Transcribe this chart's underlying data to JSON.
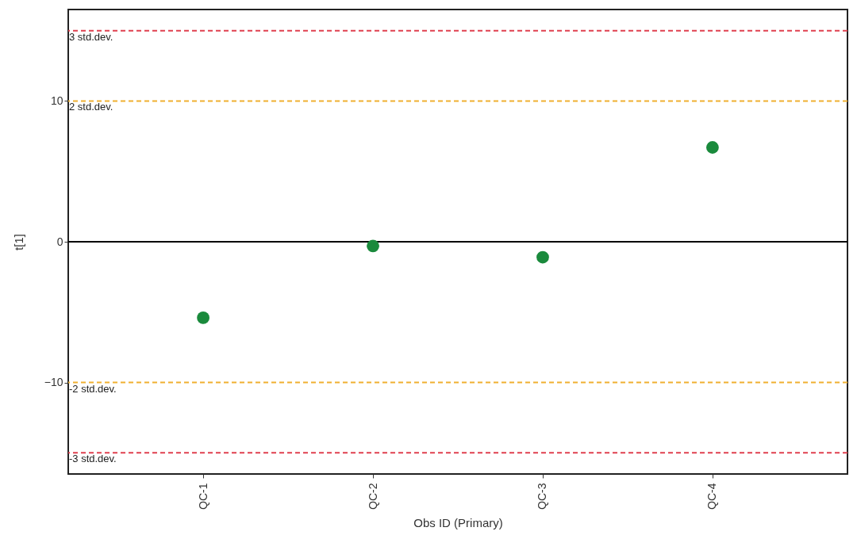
{
  "chart_data": {
    "type": "scatter",
    "xlabel": "Obs ID (Primary)",
    "ylabel": "t[1]",
    "categories": [
      "QC-1",
      "QC-2",
      "QC-3",
      "QC-4"
    ],
    "series": [
      {
        "color": "#1a8a3c",
        "values": [
          -5.4,
          -0.3,
          -1.1,
          6.7
        ]
      }
    ],
    "ylim": [
      -16.5,
      16.5
    ],
    "yticks": [
      -10,
      0,
      10
    ],
    "grid": false,
    "marker": "circle",
    "ref_lines": [
      {
        "axis": "y",
        "value": 15,
        "label": "3 std.dev.",
        "color": "#e0404f",
        "line_style": "dashed"
      },
      {
        "axis": "y",
        "value": 10,
        "label": "2 std.dev.",
        "color": "#f0b030",
        "line_style": "dashed"
      },
      {
        "axis": "y",
        "value": 0,
        "label": null,
        "color": "#000000",
        "line_style": "solid"
      },
      {
        "axis": "y",
        "value": -10,
        "label": "-2 std.dev.",
        "color": "#f0b030",
        "line_style": "dashed"
      },
      {
        "axis": "y",
        "value": -15,
        "label": "-3 std.dev.",
        "color": "#e0404f",
        "line_style": "dashed"
      }
    ]
  }
}
